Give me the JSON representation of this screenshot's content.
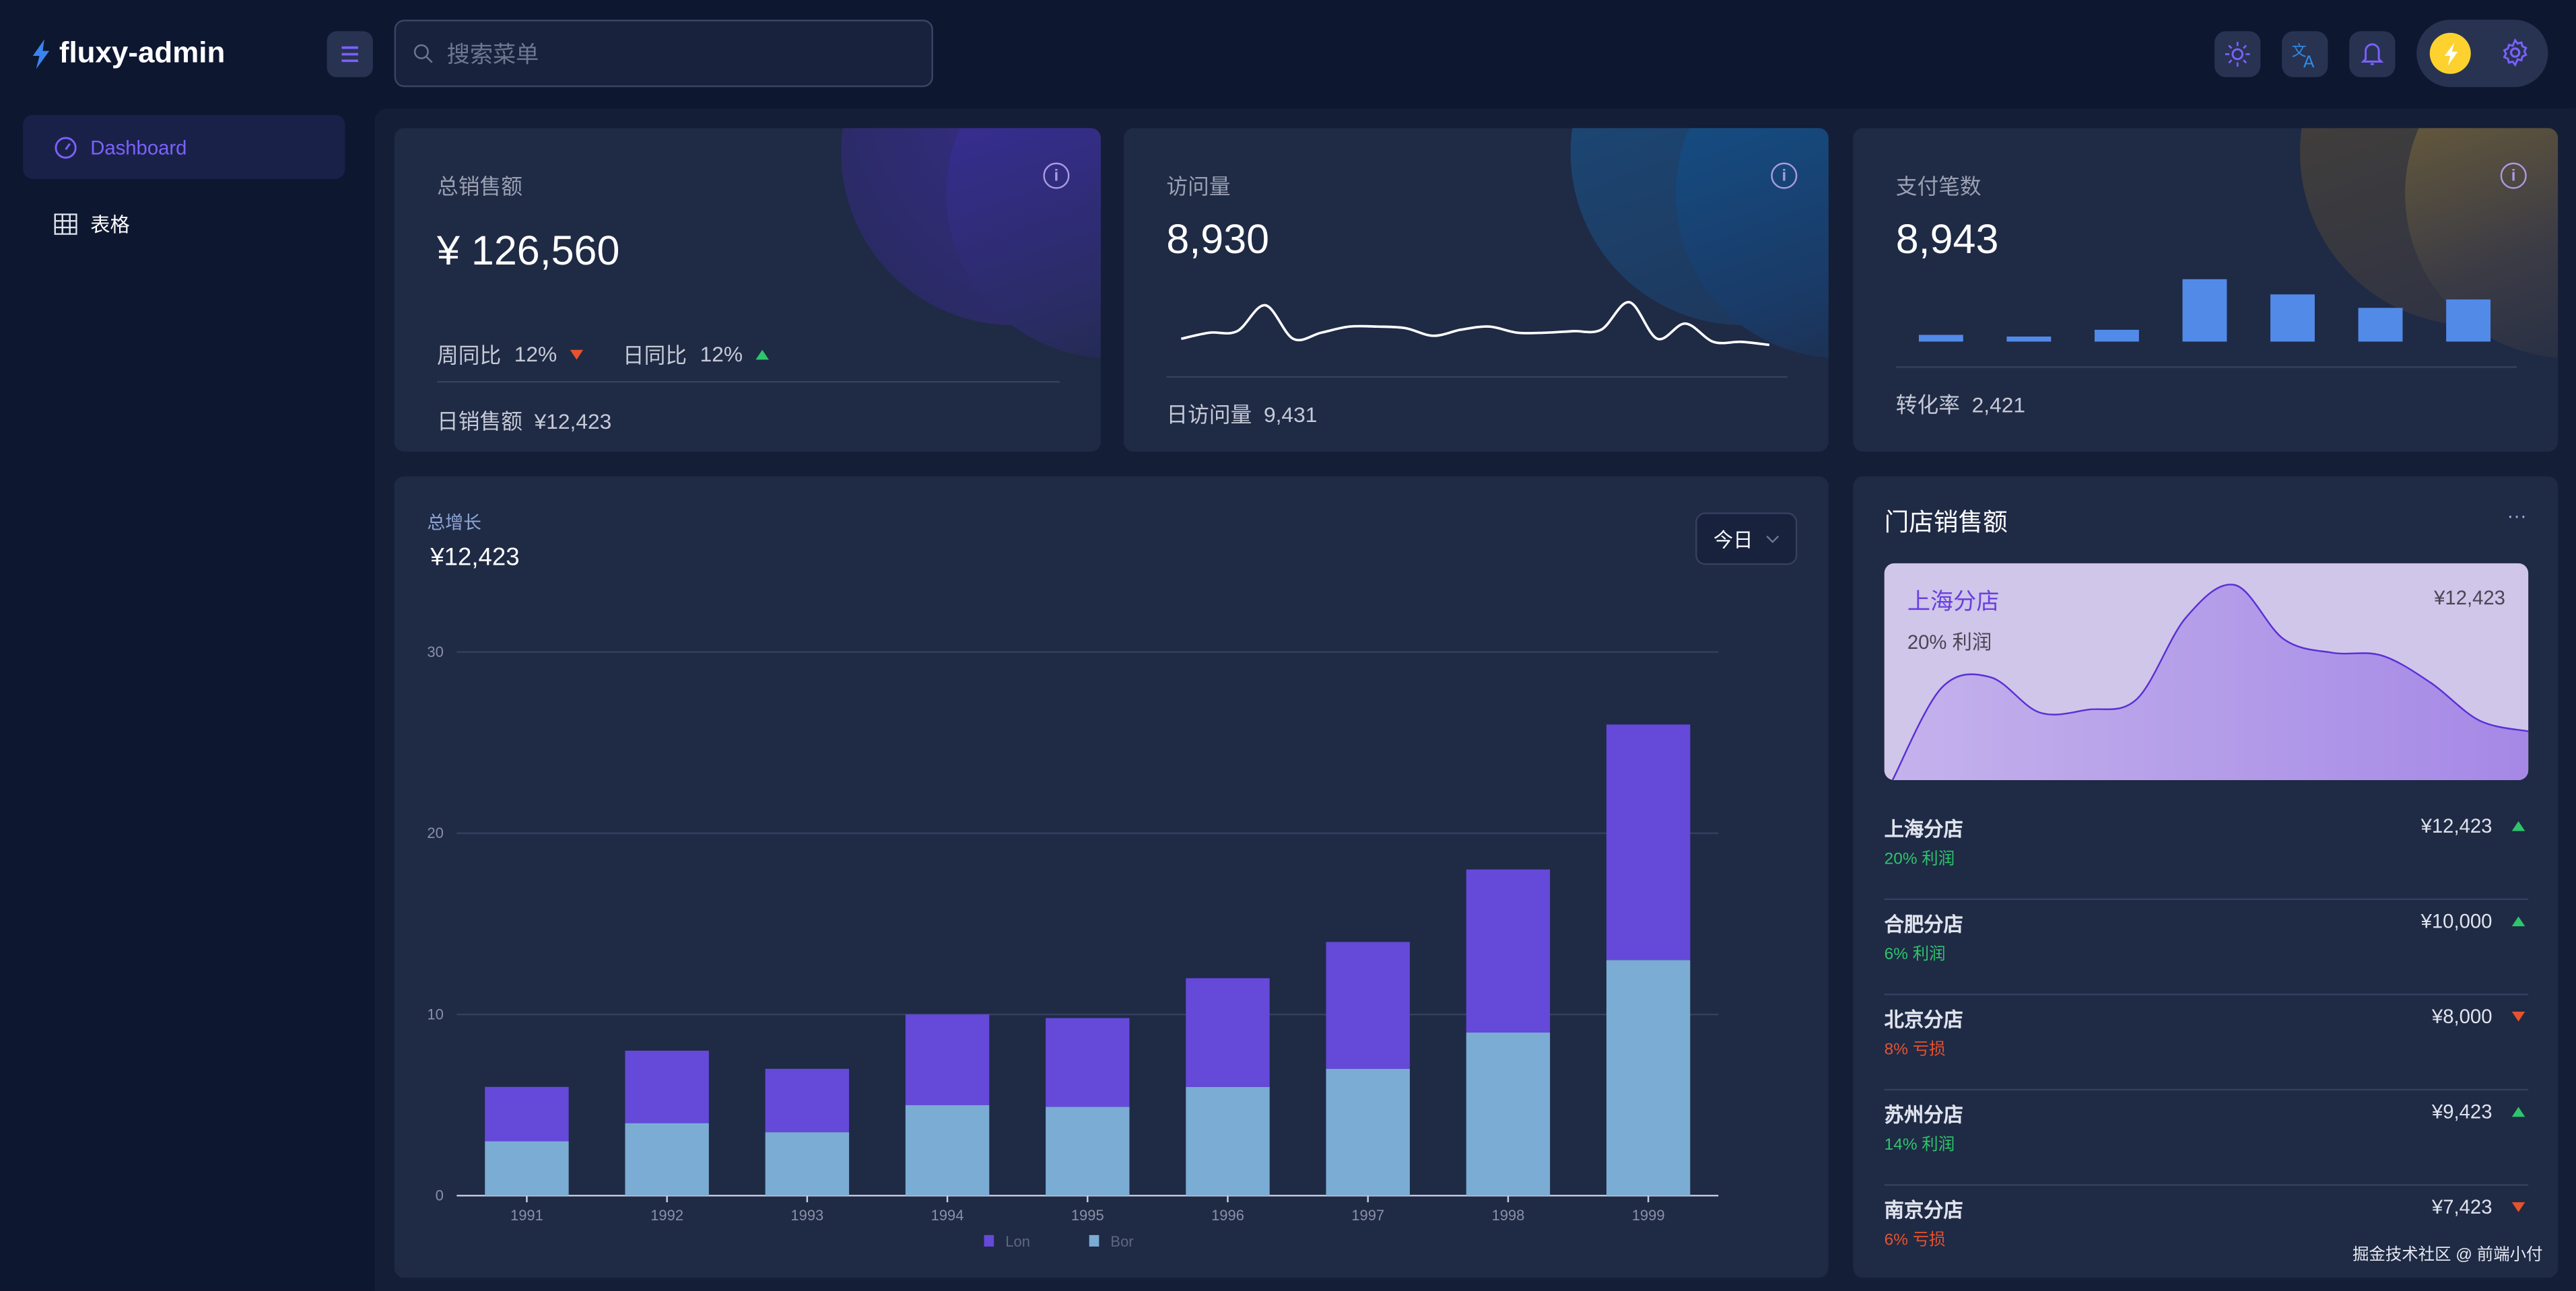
{
  "app": {
    "title": "fluxy-admin"
  },
  "header": {
    "search_placeholder": "搜索菜单",
    "icons": [
      "sun-icon",
      "translate-icon",
      "bell-icon",
      "lightning-avatar-icon",
      "gear-icon"
    ]
  },
  "sidebar": {
    "items": [
      {
        "label": "Dashboard",
        "icon": "dashboard-gauge-icon",
        "active": true
      },
      {
        "label": "表格",
        "icon": "table-icon",
        "active": false
      }
    ]
  },
  "colors": {
    "accent": "#6549d9",
    "series_lon": "#6549d9",
    "series_bor": "#7bacd4",
    "up": "#2ec56b",
    "down": "#e5532e",
    "payment_bars": "#528ae8"
  },
  "stats": {
    "sales": {
      "title": "总销售额",
      "value": "¥ 126,560",
      "week_label": "周同比",
      "week_value": "12%",
      "week_trend": "down",
      "day_label": "日同比",
      "day_value": "12%",
      "day_trend": "up",
      "footer_label": "日销售额",
      "footer_value": "¥12,423"
    },
    "visits": {
      "title": "访问量",
      "value": "8,930",
      "footer_label": "日访问量",
      "footer_value": "9,431"
    },
    "payments": {
      "title": "支付笔数",
      "value": "8,943",
      "footer_label": "转化率",
      "footer_value": "2,421"
    }
  },
  "growth": {
    "title": "总增长",
    "value": "¥12,423",
    "period_select": "今日"
  },
  "chart_data": [
    {
      "type": "bar",
      "stacked": true,
      "categories": [
        "1991",
        "1992",
        "1993",
        "1994",
        "1995",
        "1996",
        "1997",
        "1998",
        "1999"
      ],
      "series": [
        {
          "name": "Bor",
          "values": [
            3,
            4,
            3.5,
            5,
            4.9,
            6,
            7,
            9,
            13
          ]
        },
        {
          "name": "Lon",
          "values": [
            3,
            4,
            3.5,
            5,
            4.9,
            6,
            7,
            9,
            13
          ]
        }
      ],
      "ylim": [
        0,
        30
      ],
      "yticks": [
        "0",
        "10",
        "20",
        "30"
      ],
      "grid": true,
      "legend": "bottom"
    },
    {
      "type": "line",
      "values": [
        2,
        4,
        4.5,
        13,
        2,
        4,
        6,
        6,
        5.5,
        3,
        5,
        6,
        4,
        4,
        4.5,
        5,
        14,
        2,
        7,
        1,
        1,
        0
      ]
    },
    {
      "type": "bar",
      "values": [
        4,
        3,
        7,
        37,
        28,
        20,
        25
      ]
    },
    {
      "type": "area",
      "values": [
        0,
        34,
        38,
        25,
        26,
        30,
        60,
        72,
        52,
        47,
        46,
        36,
        22,
        18
      ]
    }
  ],
  "stores": {
    "title": "门店销售额",
    "more": "···",
    "featured": {
      "name": "上海分店",
      "value": "¥12,423",
      "profit": "20% 利润"
    },
    "items": [
      {
        "name": "上海分店",
        "value": "¥12,423",
        "profit": "20% 利润",
        "trend": "up"
      },
      {
        "name": "合肥分店",
        "value": "¥10,000",
        "profit": "6% 利润",
        "trend": "up"
      },
      {
        "name": "北京分店",
        "value": "¥8,000",
        "profit": "8% 亏损",
        "trend": "down"
      },
      {
        "name": "苏州分店",
        "value": "¥9,423",
        "profit": "14% 利润",
        "trend": "up"
      },
      {
        "name": "南京分店",
        "value": "¥7,423",
        "profit": "6% 亏损",
        "trend": "down"
      }
    ]
  },
  "watermark": "掘金技术社区 @ 前端小付"
}
